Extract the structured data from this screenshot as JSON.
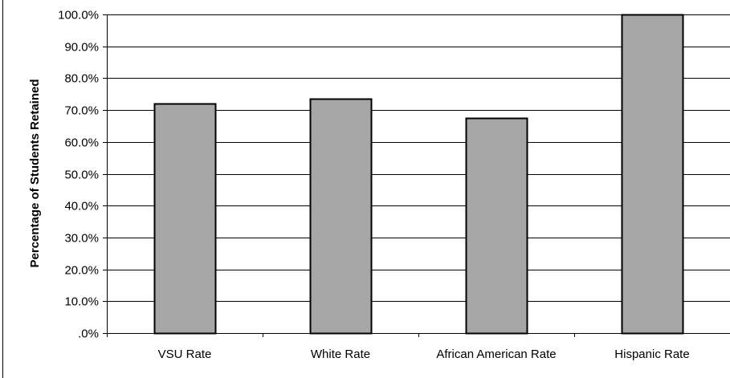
{
  "chart_data": {
    "type": "bar",
    "title": "",
    "xlabel": "",
    "ylabel": "Percentage of Students Retained",
    "categories": [
      "VSU Rate",
      "White Rate",
      "African American Rate",
      "Hispanic Rate"
    ],
    "values": [
      72.0,
      73.6,
      67.4,
      100.0
    ],
    "ylim": [
      0,
      100
    ],
    "yticks": [
      ".0%",
      "10.0%",
      "20.0%",
      "30.0%",
      "40.0%",
      "50.0%",
      "60.0%",
      "70.0%",
      "80.0%",
      "90.0%",
      "100.0%"
    ],
    "grid": true,
    "legend": "none",
    "colors": {
      "bar_fill": "#a6a6a6",
      "bar_stroke": "#000000",
      "grid": "#000000"
    }
  }
}
